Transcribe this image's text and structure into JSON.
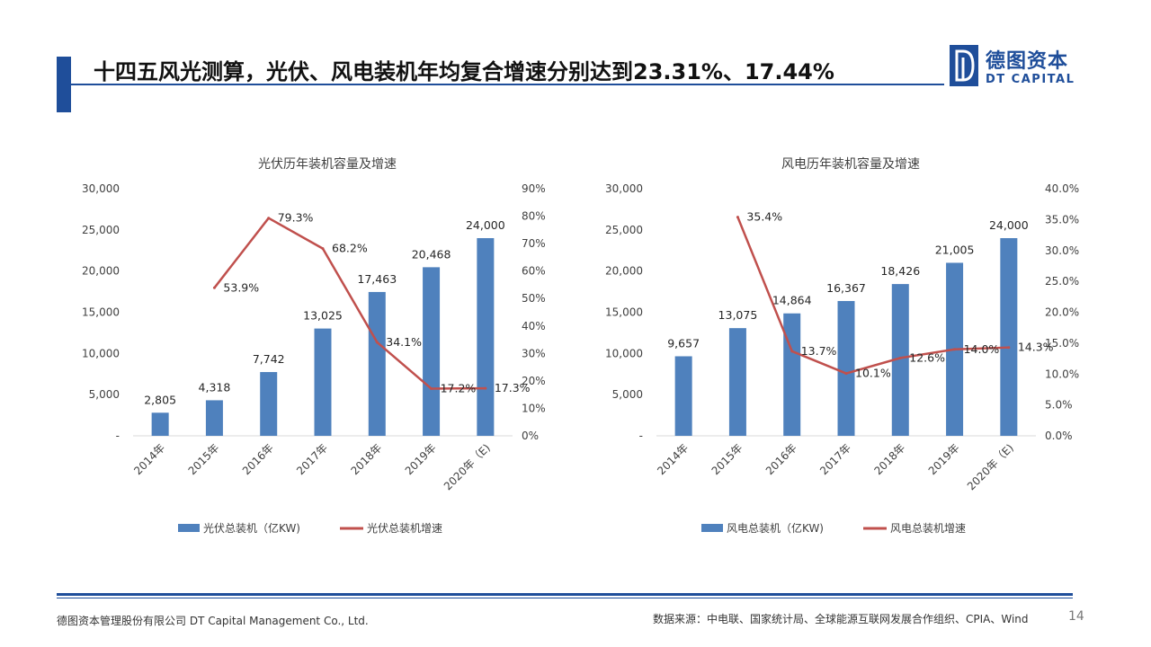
{
  "header": {
    "title": "十四五风光测算，光伏、风电装机年均复合增速分别达到23.31%、17.44%",
    "logo_cn": "德图资本",
    "logo_en": "DT CAPITAL"
  },
  "footer": {
    "company": "德图资本管理股份有限公司 DT Capital Management Co., Ltd.",
    "source": "数据来源：中电联、国家统计局、全球能源互联网发展合作组织、CPIA、Wind",
    "page": "14"
  },
  "colors": {
    "bar": "#4f81bd",
    "line": "#c0504d",
    "brand": "#1f4e9a"
  },
  "chart_data": [
    {
      "type": "bar",
      "title": "光伏历年装机容量及增速",
      "categories": [
        "2014年",
        "2015年",
        "2016年",
        "2017年",
        "2018年",
        "2019年",
        "2020年（E)"
      ],
      "series": [
        {
          "name": "光伏总装机（亿KW)",
          "type": "bar",
          "axis": "left",
          "values": [
            2805,
            4318,
            7742,
            13025,
            17463,
            20468,
            24000
          ],
          "labels": [
            "2,805",
            "4,318",
            "7,742",
            "13,025",
            "17,463",
            "20,468",
            "24,000"
          ]
        },
        {
          "name": "光伏总装机增速",
          "type": "line",
          "axis": "right",
          "values": [
            null,
            53.9,
            79.3,
            68.2,
            34.1,
            17.2,
            17.3
          ],
          "labels": [
            "",
            "53.9%",
            "79.3%",
            "68.2%",
            "34.1%",
            "17.2%",
            "17.3%"
          ]
        }
      ],
      "y_left": {
        "min": 0,
        "max": 30000,
        "ticks": [
          "-",
          "5,000",
          "10,000",
          "15,000",
          "20,000",
          "25,000",
          "30,000"
        ]
      },
      "y_right": {
        "min": 0,
        "max": 90,
        "ticks": [
          "0%",
          "10%",
          "20%",
          "30%",
          "40%",
          "50%",
          "60%",
          "70%",
          "80%",
          "90%"
        ]
      },
      "legend_position": "bottom",
      "grid": false
    },
    {
      "type": "bar",
      "title": "风电历年装机容量及增速",
      "categories": [
        "2014年",
        "2015年",
        "2016年",
        "2017年",
        "2018年",
        "2019年",
        "2020年（E)"
      ],
      "series": [
        {
          "name": "风电总装机（亿KW)",
          "type": "bar",
          "axis": "left",
          "values": [
            9657,
            13075,
            14864,
            16367,
            18426,
            21005,
            24000
          ],
          "labels": [
            "9,657",
            "13,075",
            "14,864",
            "16,367",
            "18,426",
            "21,005",
            "24,000"
          ]
        },
        {
          "name": "风电总装机增速",
          "type": "line",
          "axis": "right",
          "values": [
            null,
            35.4,
            13.7,
            10.1,
            12.6,
            14.0,
            14.3
          ],
          "labels": [
            "",
            "35.4%",
            "13.7%",
            "10.1%",
            "12.6%",
            "14.0%",
            "14.3%"
          ]
        }
      ],
      "y_left": {
        "min": 0,
        "max": 30000,
        "ticks": [
          "-",
          "5,000",
          "10,000",
          "15,000",
          "20,000",
          "25,000",
          "30,000"
        ]
      },
      "y_right": {
        "min": 0,
        "max": 40,
        "ticks": [
          "0.0%",
          "5.0%",
          "10.0%",
          "15.0%",
          "20.0%",
          "25.0%",
          "30.0%",
          "35.0%",
          "40.0%"
        ]
      },
      "legend_position": "bottom",
      "grid": false
    }
  ]
}
